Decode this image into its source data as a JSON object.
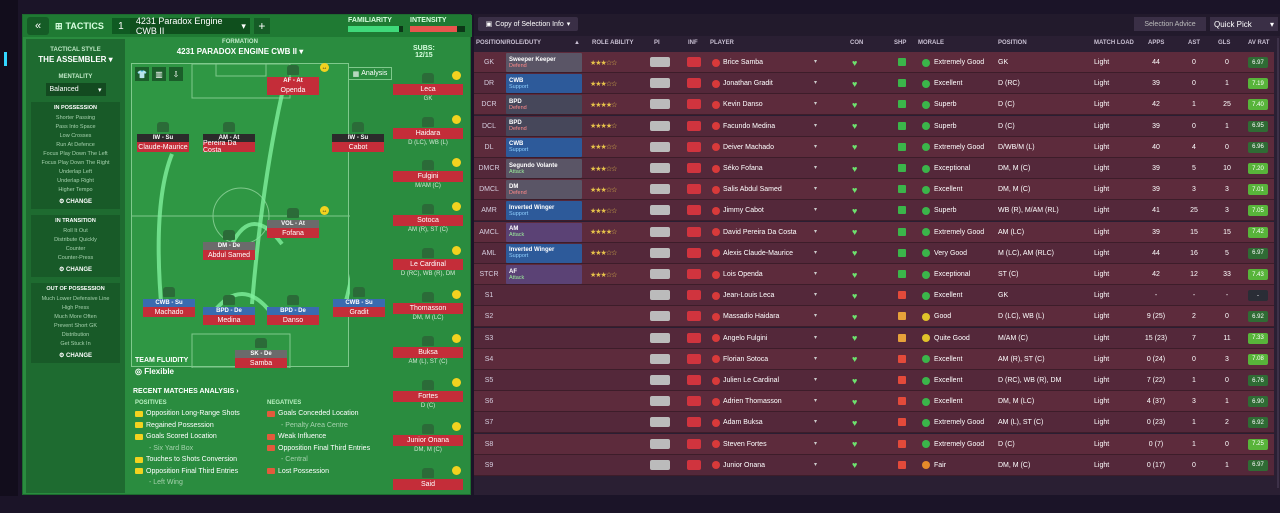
{
  "tactics": {
    "toggle": "«",
    "label": "TACTICS",
    "slot": "1",
    "name": "4231 Paradox Engine CWB II",
    "plus": "+",
    "familiarity": "FAMILIARITY",
    "intensity": "INTENSITY",
    "familiarity_level": 0.92,
    "intensity_level": 0.85
  },
  "side": {
    "style_label": "TACTICAL STYLE",
    "style_name": "THE ASSEMBLER",
    "mentality_label": "MENTALITY",
    "mentality": "Balanced",
    "in_possession": {
      "title": "IN POSSESSION",
      "items": [
        "Shorter Passing",
        "Pass Into Space",
        "Low Crosses",
        "Run At Defence",
        "Focus Play Down The Left",
        "Focus Play Down The Right",
        "Underlap Left",
        "Underlap Right",
        "Higher Tempo"
      ],
      "change": "CHANGE"
    },
    "in_transition": {
      "title": "IN TRANSITION",
      "items": [
        "Roll It Out",
        "Distribute Quickly",
        "Counter",
        "Counter-Press"
      ],
      "change": "CHANGE"
    },
    "out_possession": {
      "title": "OUT OF POSSESSION",
      "items": [
        "Much Lower Defensive Line",
        "High Press",
        "Much More Often",
        "Prevent Short GK",
        "Distribution",
        "Get Stuck In"
      ],
      "change": "CHANGE"
    }
  },
  "formation": {
    "label": "FORMATION",
    "name": "4231 PARADOX ENGINE CWB II",
    "subs_label": "SUBS:",
    "subs": "12/15",
    "analysis": "Analysis"
  },
  "pitch": [
    {
      "role": "AF - At",
      "name": "Openda"
    },
    {
      "role": "IW - Su",
      "name": "Claude-Maurice"
    },
    {
      "role": "AM - At",
      "name": "Pereira Da Costa"
    },
    {
      "role": "IW - Su",
      "name": "Cabot"
    },
    {
      "role": "VOL - At",
      "name": "Fofana"
    },
    {
      "role": "DM - De",
      "name": "Abdul Samed"
    },
    {
      "role": "CWB - Su",
      "name": "Machado"
    },
    {
      "role": "BPD - De",
      "name": "Medina"
    },
    {
      "role": "BPD - De",
      "name": "Danso"
    },
    {
      "role": "CWB - Su",
      "name": "Gradit"
    },
    {
      "role": "SK - De",
      "name": "Samba"
    }
  ],
  "subs": [
    {
      "name": "Leca",
      "pos": "GK"
    },
    {
      "name": "Haidara",
      "pos": "D (LC), WB (L)"
    },
    {
      "name": "Fulgini",
      "pos": "M/AM (C)"
    },
    {
      "name": "Sotoca",
      "pos": "AM (R), ST (C)"
    },
    {
      "name": "Le Cardinal",
      "pos": "D (RC), WB (R), DM"
    },
    {
      "name": "Thomasson",
      "pos": "DM, M (LC)"
    },
    {
      "name": "Buksa",
      "pos": "AM (L), ST (C)"
    },
    {
      "name": "Fortes",
      "pos": "D (C)"
    },
    {
      "name": "Junior Onana",
      "pos": "DM, M (C)"
    },
    {
      "name": "Said",
      "pos": ""
    }
  ],
  "fluidity": {
    "label": "TEAM FLUIDITY",
    "value": "Flexible"
  },
  "recent": {
    "title": "RECENT MATCHES ANALYSIS ›",
    "pos_label": "POSITIVES",
    "neg_label": "NEGATIVES",
    "positives": [
      "Opposition Long-Range Shots",
      "Regained Possession",
      "Goals Scored Location",
      "- Six Yard Box",
      "Touches to Shots Conversion",
      "Opposition Final Third Entries",
      "- Left Wing"
    ],
    "negatives": [
      "Goals Conceded Location",
      "- Penalty Area Centre",
      "Weak Influence",
      "Opposition Final Third Entries",
      "- Central",
      "Lost Possession"
    ]
  },
  "squad": {
    "copy": "Copy of Selection Info",
    "advice": "Selection Advice",
    "quick": "Quick Pick",
    "headers": [
      "POSITION/ROLE/DUTY",
      "ROLE ABILITY",
      "PI",
      "INF",
      "PLAYER",
      "CON",
      "SHP",
      "MORALE",
      "POSITION",
      "MATCH LOAD",
      "APPS",
      "AST",
      "GLS",
      "AV RAT"
    ],
    "rows": [
      {
        "pos": "GK",
        "role": "Sweeper Keeper",
        "duty": "Defend",
        "stars": "★★★☆☆",
        "player": "Brice Samba",
        "morale": "Extremely Good",
        "position": "GK",
        "load": "Light",
        "apps": "44",
        "ast": "0",
        "gls": "0",
        "rat": "6.97"
      },
      {
        "pos": "DR",
        "role": "CWB",
        "duty": "Support",
        "stars": "★★★☆☆",
        "player": "Jonathan Gradit",
        "morale": "Excellent",
        "position": "D (RC)",
        "load": "Light",
        "apps": "39",
        "ast": "0",
        "gls": "1",
        "rat": "7.19"
      },
      {
        "pos": "DCR",
        "role": "BPD",
        "duty": "Defend",
        "stars": "★★★★☆",
        "player": "Kevin Danso",
        "morale": "Superb",
        "position": "D (C)",
        "load": "Light",
        "apps": "42",
        "ast": "1",
        "gls": "25",
        "rat": "7.40"
      },
      {
        "pos": "DCL",
        "role": "BPD",
        "duty": "Defend",
        "stars": "★★★★☆",
        "player": "Facundo Medina",
        "morale": "Superb",
        "position": "D (C)",
        "load": "Light",
        "apps": "39",
        "ast": "0",
        "gls": "1",
        "rat": "6.95"
      },
      {
        "pos": "DL",
        "role": "CWB",
        "duty": "Support",
        "stars": "★★★☆☆",
        "player": "Deiver Machado",
        "morale": "Extremely Good",
        "position": "D/WB/M (L)",
        "load": "Light",
        "apps": "40",
        "ast": "4",
        "gls": "0",
        "rat": "6.96"
      },
      {
        "pos": "DMCR",
        "role": "Segundo Volante",
        "duty": "Attack",
        "stars": "★★★☆☆",
        "player": "Séko Fofana",
        "morale": "Exceptional",
        "position": "DM, M (C)",
        "load": "Light",
        "apps": "39",
        "ast": "5",
        "gls": "10",
        "rat": "7.20"
      },
      {
        "pos": "DMCL",
        "role": "DM",
        "duty": "Defend",
        "stars": "★★★☆☆",
        "player": "Salis Abdul Samed",
        "morale": "Excellent",
        "position": "DM, M (C)",
        "load": "Light",
        "apps": "39",
        "ast": "3",
        "gls": "3",
        "rat": "7.01"
      },
      {
        "pos": "AMR",
        "role": "Inverted Winger",
        "duty": "Support",
        "stars": "★★★☆☆",
        "player": "Jimmy Cabot",
        "morale": "Superb",
        "position": "WB (R), M/AM (RL)",
        "load": "Light",
        "apps": "41",
        "ast": "25",
        "gls": "3",
        "rat": "7.05"
      },
      {
        "pos": "AMCL",
        "role": "AM",
        "duty": "Attack",
        "stars": "★★★★☆",
        "player": "David Pereira Da Costa",
        "morale": "Extremely Good",
        "position": "AM (LC)",
        "load": "Light",
        "apps": "39",
        "ast": "15",
        "gls": "15",
        "rat": "7.42"
      },
      {
        "pos": "AML",
        "role": "Inverted Winger",
        "duty": "Support",
        "stars": "★★★☆☆",
        "player": "Alexis Claude-Maurice",
        "morale": "Very Good",
        "position": "M (LC), AM (RLC)",
        "load": "Light",
        "apps": "44",
        "ast": "16",
        "gls": "5",
        "rat": "6.97"
      },
      {
        "pos": "STCR",
        "role": "AF",
        "duty": "Attack",
        "stars": "★★★☆☆",
        "player": "Lois Openda",
        "morale": "Exceptional",
        "position": "ST (C)",
        "load": "Light",
        "apps": "42",
        "ast": "12",
        "gls": "33",
        "rat": "7.43"
      },
      {
        "pos": "S1",
        "role": "",
        "duty": "",
        "stars": "",
        "player": "Jean-Louis Leca",
        "morale": "Excellent",
        "position": "GK",
        "load": "Light",
        "apps": "-",
        "ast": "-",
        "gls": "-",
        "rat": "-"
      },
      {
        "pos": "S2",
        "role": "",
        "duty": "",
        "stars": "",
        "player": "Massadio Haidara",
        "morale": "Good",
        "position": "D (LC), WB (L)",
        "load": "Light",
        "apps": "9 (25)",
        "ast": "2",
        "gls": "0",
        "rat": "6.92"
      },
      {
        "pos": "S3",
        "role": "",
        "duty": "",
        "stars": "",
        "player": "Angelo Fulgini",
        "morale": "Quite Good",
        "position": "M/AM (C)",
        "load": "Light",
        "apps": "15 (23)",
        "ast": "7",
        "gls": "11",
        "rat": "7.33"
      },
      {
        "pos": "S4",
        "role": "",
        "duty": "",
        "stars": "",
        "player": "Florian Sotoca",
        "morale": "Excellent",
        "position": "AM (R), ST (C)",
        "load": "Light",
        "apps": "0 (24)",
        "ast": "0",
        "gls": "3",
        "rat": "7.08"
      },
      {
        "pos": "S5",
        "role": "",
        "duty": "",
        "stars": "",
        "player": "Julien Le Cardinal",
        "morale": "Excellent",
        "position": "D (RC), WB (R), DM",
        "load": "Light",
        "apps": "7 (22)",
        "ast": "1",
        "gls": "0",
        "rat": "6.76"
      },
      {
        "pos": "S6",
        "role": "",
        "duty": "",
        "stars": "",
        "player": "Adrien Thomasson",
        "morale": "Excellent",
        "position": "DM, M (LC)",
        "load": "Light",
        "apps": "4 (37)",
        "ast": "3",
        "gls": "1",
        "rat": "6.90"
      },
      {
        "pos": "S7",
        "role": "",
        "duty": "",
        "stars": "",
        "player": "Adam Buksa",
        "morale": "Extremely Good",
        "position": "AM (L), ST (C)",
        "load": "Light",
        "apps": "0 (23)",
        "ast": "1",
        "gls": "2",
        "rat": "6.92"
      },
      {
        "pos": "S8",
        "role": "",
        "duty": "",
        "stars": "",
        "player": "Steven Fortes",
        "morale": "Extremely Good",
        "position": "D (C)",
        "load": "Light",
        "apps": "0 (7)",
        "ast": "1",
        "gls": "0",
        "rat": "7.25"
      },
      {
        "pos": "S9",
        "role": "",
        "duty": "",
        "stars": "",
        "player": "Junior Onana",
        "morale": "Fair",
        "position": "DM, M (C)",
        "load": "Light",
        "apps": "0 (17)",
        "ast": "0",
        "gls": "1",
        "rat": "6.97"
      }
    ]
  }
}
